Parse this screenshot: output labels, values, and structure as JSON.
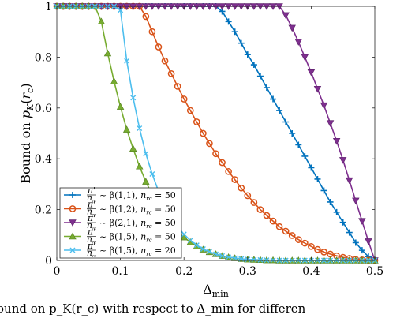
{
  "caption": "ound on p_K(r_c) with respect to Δ_min for differen",
  "chart_data": {
    "type": "line",
    "title": "",
    "xlabel": "Δ_min",
    "ylabel": "Bound on p_K(r_c)",
    "xlim": [
      0,
      0.5
    ],
    "ylim": [
      0,
      1
    ],
    "xticks": [
      0,
      0.1,
      0.2,
      0.3,
      0.4,
      0.5
    ],
    "yticks": [
      0,
      0.2,
      0.4,
      0.6,
      0.8,
      1
    ],
    "xtick_labels": [
      "0",
      "0.1",
      "0.2",
      "0.3",
      "0.4",
      "0.5"
    ],
    "ytick_labels": [
      "0",
      "0.2",
      "0.4",
      "0.6",
      "0.8",
      "1"
    ],
    "grid": false,
    "legend_position": "bottom-left",
    "series": [
      {
        "name": "π'/n_rc ~ β(1,1), n_rc = 50",
        "color": "#0072BD",
        "marker": "plus",
        "points": [
          [
            0,
            1
          ],
          [
            0.01,
            1
          ],
          [
            0.02,
            1
          ],
          [
            0.03,
            1
          ],
          [
            0.04,
            1
          ],
          [
            0.05,
            1
          ],
          [
            0.06,
            1
          ],
          [
            0.07,
            1
          ],
          [
            0.08,
            1
          ],
          [
            0.09,
            1
          ],
          [
            0.1,
            1
          ],
          [
            0.11,
            1
          ],
          [
            0.12,
            1
          ],
          [
            0.13,
            1
          ],
          [
            0.14,
            1
          ],
          [
            0.15,
            1
          ],
          [
            0.16,
            1
          ],
          [
            0.17,
            1
          ],
          [
            0.18,
            1
          ],
          [
            0.19,
            1
          ],
          [
            0.2,
            1
          ],
          [
            0.21,
            1
          ],
          [
            0.22,
            1
          ],
          [
            0.23,
            1
          ],
          [
            0.24,
            1
          ],
          [
            0.25,
            1
          ],
          [
            0.26,
            0.98
          ],
          [
            0.27,
            0.94
          ],
          [
            0.28,
            0.9
          ],
          [
            0.29,
            0.855
          ],
          [
            0.3,
            0.81
          ],
          [
            0.31,
            0.77
          ],
          [
            0.32,
            0.725
          ],
          [
            0.33,
            0.68
          ],
          [
            0.34,
            0.635
          ],
          [
            0.35,
            0.59
          ],
          [
            0.36,
            0.545
          ],
          [
            0.37,
            0.5
          ],
          [
            0.38,
            0.455
          ],
          [
            0.39,
            0.41
          ],
          [
            0.4,
            0.365
          ],
          [
            0.41,
            0.32
          ],
          [
            0.42,
            0.275
          ],
          [
            0.43,
            0.23
          ],
          [
            0.44,
            0.19
          ],
          [
            0.45,
            0.15
          ],
          [
            0.46,
            0.11
          ],
          [
            0.47,
            0.07
          ],
          [
            0.48,
            0.04
          ],
          [
            0.49,
            0.015
          ],
          [
            0.5,
            0.002
          ]
        ]
      },
      {
        "name": "π'/n_rc ~ β(1,2), n_rc = 50",
        "color": "#D95319",
        "marker": "circle",
        "points": [
          [
            0,
            1
          ],
          [
            0.01,
            1
          ],
          [
            0.02,
            1
          ],
          [
            0.03,
            1
          ],
          [
            0.04,
            1
          ],
          [
            0.05,
            1
          ],
          [
            0.06,
            1
          ],
          [
            0.07,
            1
          ],
          [
            0.08,
            1
          ],
          [
            0.09,
            1
          ],
          [
            0.1,
            1
          ],
          [
            0.11,
            1
          ],
          [
            0.12,
            1
          ],
          [
            0.13,
            1
          ],
          [
            0.14,
            0.96
          ],
          [
            0.15,
            0.9
          ],
          [
            0.16,
            0.84
          ],
          [
            0.17,
            0.785
          ],
          [
            0.18,
            0.735
          ],
          [
            0.19,
            0.685
          ],
          [
            0.2,
            0.635
          ],
          [
            0.21,
            0.59
          ],
          [
            0.22,
            0.545
          ],
          [
            0.23,
            0.5
          ],
          [
            0.24,
            0.46
          ],
          [
            0.25,
            0.42
          ],
          [
            0.26,
            0.385
          ],
          [
            0.27,
            0.35
          ],
          [
            0.28,
            0.318
          ],
          [
            0.29,
            0.285
          ],
          [
            0.3,
            0.255
          ],
          [
            0.31,
            0.228
          ],
          [
            0.32,
            0.2
          ],
          [
            0.33,
            0.177
          ],
          [
            0.34,
            0.155
          ],
          [
            0.35,
            0.133
          ],
          [
            0.36,
            0.115
          ],
          [
            0.37,
            0.098
          ],
          [
            0.38,
            0.082
          ],
          [
            0.39,
            0.068
          ],
          [
            0.4,
            0.055
          ],
          [
            0.41,
            0.043
          ],
          [
            0.42,
            0.033
          ],
          [
            0.43,
            0.025
          ],
          [
            0.44,
            0.018
          ],
          [
            0.45,
            0.012
          ],
          [
            0.46,
            0.008
          ],
          [
            0.47,
            0.004
          ],
          [
            0.48,
            0.002
          ],
          [
            0.49,
            0.001
          ],
          [
            0.5,
            0
          ]
        ]
      },
      {
        "name": "π'/n_rc ~ β(2,1), n_rc = 50",
        "color": "#7E2F8E",
        "marker": "triangle-down",
        "points": [
          [
            0,
            1
          ],
          [
            0.01,
            1
          ],
          [
            0.02,
            1
          ],
          [
            0.03,
            1
          ],
          [
            0.04,
            1
          ],
          [
            0.05,
            1
          ],
          [
            0.06,
            1
          ],
          [
            0.07,
            1
          ],
          [
            0.08,
            1
          ],
          [
            0.09,
            1
          ],
          [
            0.1,
            1
          ],
          [
            0.11,
            1
          ],
          [
            0.12,
            1
          ],
          [
            0.13,
            1
          ],
          [
            0.14,
            1
          ],
          [
            0.15,
            1
          ],
          [
            0.16,
            1
          ],
          [
            0.17,
            1
          ],
          [
            0.18,
            1
          ],
          [
            0.19,
            1
          ],
          [
            0.2,
            1
          ],
          [
            0.21,
            1
          ],
          [
            0.22,
            1
          ],
          [
            0.23,
            1
          ],
          [
            0.24,
            1
          ],
          [
            0.25,
            1
          ],
          [
            0.26,
            1
          ],
          [
            0.27,
            1
          ],
          [
            0.28,
            1
          ],
          [
            0.29,
            1
          ],
          [
            0.3,
            1
          ],
          [
            0.31,
            1
          ],
          [
            0.32,
            1
          ],
          [
            0.33,
            1
          ],
          [
            0.34,
            1
          ],
          [
            0.35,
            1
          ],
          [
            0.36,
            0.965
          ],
          [
            0.37,
            0.915
          ],
          [
            0.38,
            0.86
          ],
          [
            0.39,
            0.8
          ],
          [
            0.4,
            0.74
          ],
          [
            0.41,
            0.675
          ],
          [
            0.42,
            0.61
          ],
          [
            0.43,
            0.54
          ],
          [
            0.44,
            0.47
          ],
          [
            0.45,
            0.395
          ],
          [
            0.46,
            0.315
          ],
          [
            0.47,
            0.235
          ],
          [
            0.48,
            0.155
          ],
          [
            0.49,
            0.075
          ],
          [
            0.5,
            0
          ]
        ]
      },
      {
        "name": "π'/n_rc ~ β(1,5), n_rc = 50",
        "color": "#77AC30",
        "marker": "triangle-up",
        "points": [
          [
            0,
            1
          ],
          [
            0.01,
            1
          ],
          [
            0.02,
            1
          ],
          [
            0.03,
            1
          ],
          [
            0.04,
            1
          ],
          [
            0.05,
            1
          ],
          [
            0.06,
            1
          ],
          [
            0.07,
            0.94
          ],
          [
            0.08,
            0.815
          ],
          [
            0.09,
            0.705
          ],
          [
            0.1,
            0.605
          ],
          [
            0.11,
            0.515
          ],
          [
            0.12,
            0.44
          ],
          [
            0.13,
            0.37
          ],
          [
            0.14,
            0.31
          ],
          [
            0.15,
            0.258
          ],
          [
            0.16,
            0.213
          ],
          [
            0.17,
            0.175
          ],
          [
            0.18,
            0.142
          ],
          [
            0.19,
            0.114
          ],
          [
            0.2,
            0.091
          ],
          [
            0.21,
            0.072
          ],
          [
            0.22,
            0.056
          ],
          [
            0.23,
            0.043
          ],
          [
            0.24,
            0.033
          ],
          [
            0.25,
            0.025
          ],
          [
            0.26,
            0.018
          ],
          [
            0.27,
            0.013
          ],
          [
            0.28,
            0.009
          ],
          [
            0.29,
            0.006
          ],
          [
            0.3,
            0.004
          ],
          [
            0.31,
            0.003
          ],
          [
            0.32,
            0.002
          ],
          [
            0.33,
            0.001
          ],
          [
            0.34,
            0.001
          ],
          [
            0.35,
            0
          ],
          [
            0.36,
            0
          ],
          [
            0.37,
            0
          ],
          [
            0.38,
            0
          ],
          [
            0.39,
            0
          ],
          [
            0.4,
            0
          ],
          [
            0.41,
            0
          ],
          [
            0.42,
            0
          ],
          [
            0.43,
            0
          ],
          [
            0.44,
            0
          ],
          [
            0.45,
            0
          ],
          [
            0.46,
            0
          ],
          [
            0.47,
            0
          ],
          [
            0.48,
            0
          ],
          [
            0.49,
            0
          ],
          [
            0.5,
            0
          ]
        ]
      },
      {
        "name": "π'/n_rc ~ β(1,5), n_rc = 20",
        "color": "#4DBEEE",
        "marker": "x",
        "points": [
          [
            0,
            1
          ],
          [
            0.01,
            1
          ],
          [
            0.02,
            1
          ],
          [
            0.03,
            1
          ],
          [
            0.04,
            1
          ],
          [
            0.05,
            1
          ],
          [
            0.06,
            1
          ],
          [
            0.07,
            1
          ],
          [
            0.08,
            1
          ],
          [
            0.09,
            1
          ],
          [
            0.1,
            0.985
          ],
          [
            0.11,
            0.785
          ],
          [
            0.12,
            0.64
          ],
          [
            0.13,
            0.52
          ],
          [
            0.14,
            0.42
          ],
          [
            0.15,
            0.34
          ],
          [
            0.16,
            0.272
          ],
          [
            0.17,
            0.216
          ],
          [
            0.18,
            0.17
          ],
          [
            0.19,
            0.133
          ],
          [
            0.2,
            0.103
          ],
          [
            0.21,
            0.079
          ],
          [
            0.22,
            0.06
          ],
          [
            0.23,
            0.045
          ],
          [
            0.24,
            0.034
          ],
          [
            0.25,
            0.025
          ],
          [
            0.26,
            0.018
          ],
          [
            0.27,
            0.013
          ],
          [
            0.28,
            0.009
          ],
          [
            0.29,
            0.006
          ],
          [
            0.3,
            0.004
          ],
          [
            0.31,
            0.003
          ],
          [
            0.32,
            0.002
          ],
          [
            0.33,
            0.001
          ],
          [
            0.34,
            0.001
          ],
          [
            0.35,
            0
          ],
          [
            0.36,
            0
          ],
          [
            0.37,
            0
          ],
          [
            0.38,
            0
          ],
          [
            0.39,
            0
          ],
          [
            0.4,
            0
          ],
          [
            0.41,
            0
          ],
          [
            0.42,
            0
          ],
          [
            0.43,
            0
          ],
          [
            0.44,
            0
          ],
          [
            0.45,
            0
          ],
          [
            0.46,
            0
          ],
          [
            0.47,
            0
          ],
          [
            0.48,
            0
          ],
          [
            0.49,
            0
          ],
          [
            0.5,
            0
          ]
        ]
      }
    ]
  }
}
